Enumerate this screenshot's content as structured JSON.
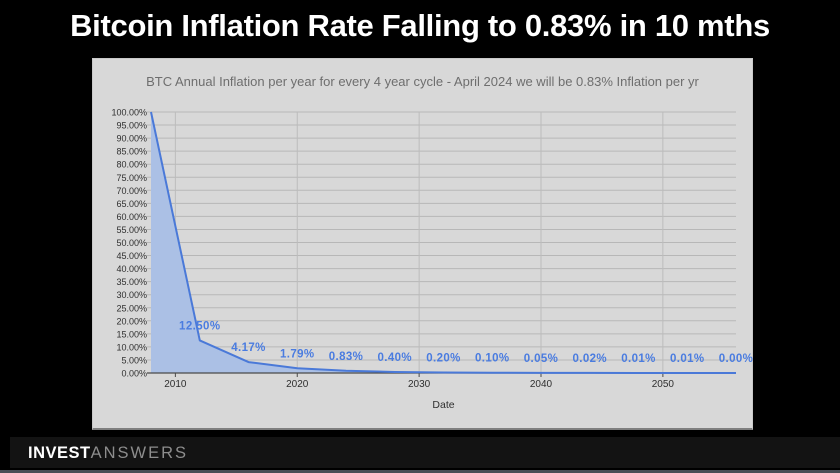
{
  "page": {
    "title": "Bitcoin Inflation Rate Falling to 0.83% in 10 mths"
  },
  "brand": {
    "bold": "INVEST",
    "light": "ANSWERS"
  },
  "chart_data": {
    "type": "area",
    "title": "BTC Annual Inflation per year for every 4 year cycle - April 2024 we will be 0.83% Inflation per yr",
    "xlabel": "Date",
    "series": [
      {
        "name": "BTC Annual Inflation",
        "x": [
          2008,
          2012,
          2016,
          2020,
          2024,
          2028,
          2032,
          2036,
          2040,
          2044,
          2048,
          2052,
          2056
        ],
        "y": [
          100,
          12.5,
          4.17,
          1.79,
          0.83,
          0.4,
          0.2,
          0.1,
          0.05,
          0.02,
          0.01,
          0.01,
          0.0
        ],
        "point_labels": [
          "",
          "12.50%",
          "4.17%",
          "1.79%",
          "0.83%",
          "0.40%",
          "0.20%",
          "0.10%",
          "0.05%",
          "0.02%",
          "0.01%",
          "0.01%",
          "0.00%"
        ]
      }
    ],
    "xlim": [
      2008,
      2056
    ],
    "ylim": [
      0,
      100
    ],
    "x_ticks": [
      2010,
      2020,
      2030,
      2040,
      2050
    ],
    "x_tick_labels": [
      "2010",
      "2020",
      "2030",
      "2040",
      "2050"
    ],
    "y_tick_labels": [
      "100.00%",
      "95.00%",
      "90.00%",
      "85.00%",
      "80.00%",
      "75.00%",
      "70.00%",
      "65.00%",
      "60.00%",
      "55.00%",
      "50.00%",
      "45.00%",
      "40.00%",
      "35.00%",
      "30.00%",
      "25.00%",
      "20.00%",
      "15.00%",
      "10.00%",
      "5.00%",
      "0.00%"
    ],
    "y_tick_step": 5,
    "grid": true,
    "legend": "none",
    "colors": {
      "line": "#4a79d8",
      "fill": "#abc0e5",
      "point_label": "#4a7ce0",
      "grid_h": "#b7b7b7",
      "grid_v": "#bcbcbc",
      "axis": "#4a4a4a",
      "tick_text": "#2f2f2f"
    }
  }
}
